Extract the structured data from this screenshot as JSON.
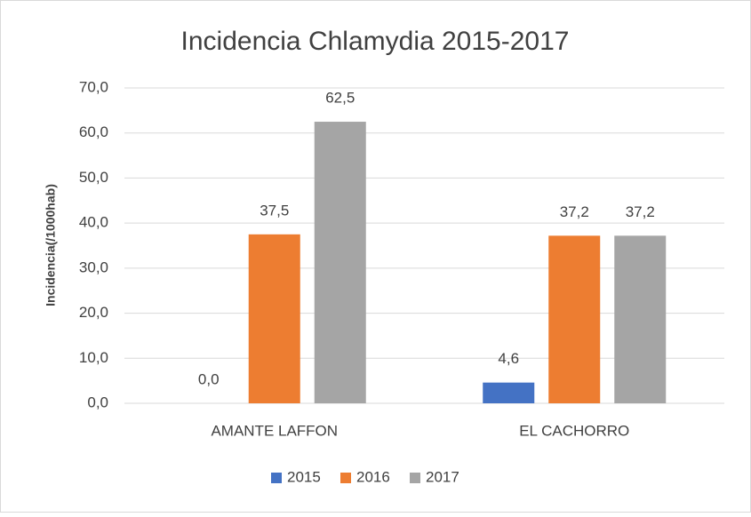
{
  "chart_data": {
    "type": "bar",
    "title": "Incidencia Chlamydia 2015-2017",
    "y_label": "Incidencia(/1000hab)",
    "categories": [
      "AMANTE LAFFON",
      "EL CACHORRO"
    ],
    "series": [
      {
        "name": "2015",
        "color": "#4472c4",
        "values": [
          0,
          4.6
        ],
        "value_labels": [
          "0,0",
          "4,6"
        ]
      },
      {
        "name": "2016",
        "color": "#ed7d31",
        "values": [
          37.5,
          37.2
        ],
        "value_labels": [
          "37,5",
          "37,2"
        ]
      },
      {
        "name": "2017",
        "color": "#a5a5a5",
        "values": [
          62.5,
          37.2
        ],
        "value_labels": [
          "62,5",
          "37,2"
        ]
      }
    ],
    "ylim": [
      0,
      70
    ],
    "yticks": [
      {
        "value": 0,
        "label": "0,0"
      },
      {
        "value": 10,
        "label": "10,0"
      },
      {
        "value": 20,
        "label": "20,0"
      },
      {
        "value": 30,
        "label": "30,0"
      },
      {
        "value": 40,
        "label": "40,0"
      },
      {
        "value": 50,
        "label": "50,0"
      },
      {
        "value": 60,
        "label": "60,0"
      },
      {
        "value": 70,
        "label": "70,0"
      }
    ],
    "grid": true,
    "legend": "bottom"
  }
}
